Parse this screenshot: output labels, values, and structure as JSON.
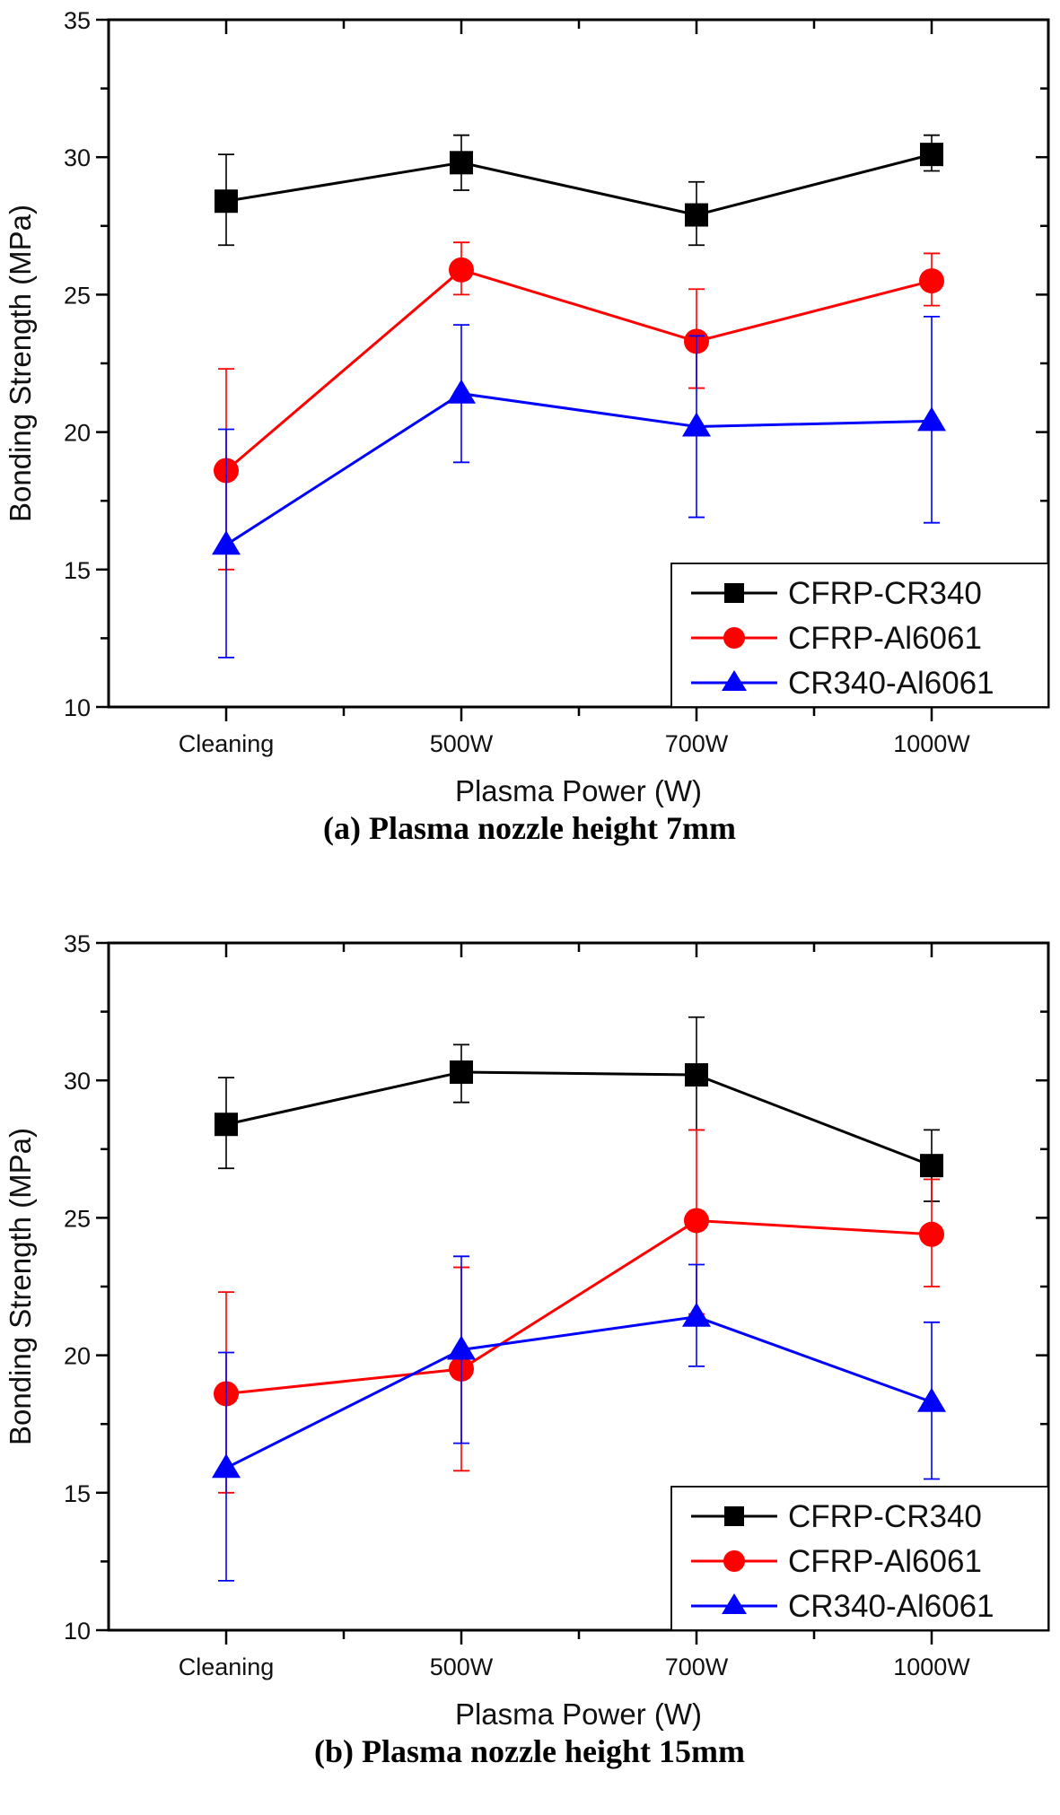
{
  "chart_data": [
    {
      "type": "line",
      "caption": "(a) Plasma nozzle height 7mm",
      "xlabel": "Plasma Power (W)",
      "ylabel": "Bonding Strength (MPa)",
      "categories": [
        "Cleaning",
        "500W",
        "700W",
        "1000W"
      ],
      "ylim": [
        10,
        35
      ],
      "yticks": [
        10,
        15,
        20,
        25,
        30,
        35
      ],
      "grid": false,
      "legend_position": "bottom-right",
      "series": [
        {
          "name": "CFRP-CR340",
          "color": "#000000",
          "marker": "square",
          "values": [
            28.4,
            29.8,
            27.9,
            30.1
          ],
          "err_low": [
            26.8,
            28.8,
            26.8,
            29.5
          ],
          "err_high": [
            30.1,
            30.8,
            29.1,
            30.8
          ]
        },
        {
          "name": "CFRP-Al6061",
          "color": "#ff0000",
          "marker": "circle",
          "values": [
            18.6,
            25.9,
            23.3,
            25.5
          ],
          "err_low": [
            15.0,
            25.0,
            21.6,
            24.6
          ],
          "err_high": [
            22.3,
            26.9,
            25.2,
            26.5
          ]
        },
        {
          "name": "CR340-Al6061",
          "color": "#0000ff",
          "marker": "triangle",
          "values": [
            15.9,
            21.4,
            20.2,
            20.4
          ],
          "err_low": [
            11.8,
            18.9,
            16.9,
            16.7
          ],
          "err_high": [
            20.1,
            23.9,
            23.5,
            24.2
          ]
        }
      ]
    },
    {
      "type": "line",
      "caption": "(b) Plasma nozzle height 15mm",
      "xlabel": "Plasma Power (W)",
      "ylabel": "Bonding Strength (MPa)",
      "categories": [
        "Cleaning",
        "500W",
        "700W",
        "1000W"
      ],
      "ylim": [
        10,
        35
      ],
      "yticks": [
        10,
        15,
        20,
        25,
        30,
        35
      ],
      "grid": false,
      "legend_position": "bottom-right",
      "series": [
        {
          "name": "CFRP-CR340",
          "color": "#000000",
          "marker": "square",
          "values": [
            28.4,
            30.3,
            30.2,
            26.9
          ],
          "err_low": [
            26.8,
            29.2,
            28.2,
            25.6
          ],
          "err_high": [
            30.1,
            31.3,
            32.3,
            28.2
          ]
        },
        {
          "name": "CFRP-Al6061",
          "color": "#ff0000",
          "marker": "circle",
          "values": [
            18.6,
            19.5,
            24.9,
            24.4
          ],
          "err_low": [
            15.0,
            15.8,
            21.5,
            22.5
          ],
          "err_high": [
            22.3,
            23.2,
            28.2,
            26.4
          ]
        },
        {
          "name": "CR340-Al6061",
          "color": "#0000ff",
          "marker": "triangle",
          "values": [
            15.9,
            20.2,
            21.4,
            18.3
          ],
          "err_low": [
            11.8,
            16.8,
            19.6,
            15.5
          ],
          "err_high": [
            20.1,
            23.6,
            23.3,
            21.2
          ]
        }
      ]
    }
  ]
}
